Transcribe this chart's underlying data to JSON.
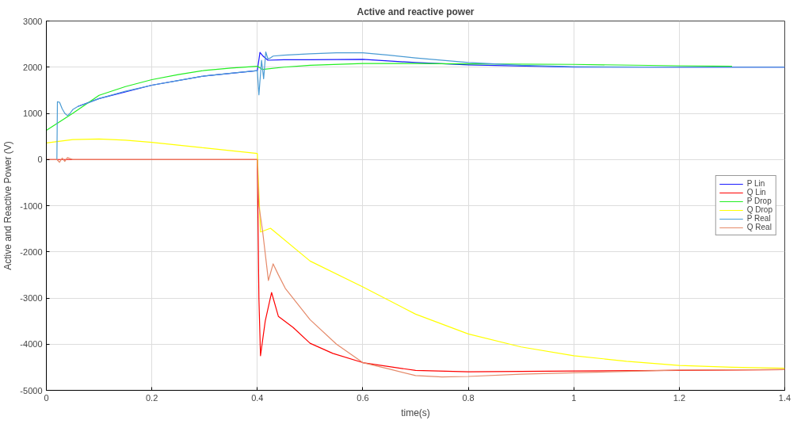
{
  "chart_data": {
    "type": "line",
    "title": "Active and reactive power",
    "xlabel": "time(s)",
    "ylabel": "Active and Reactive Power (V)",
    "xlim": [
      0,
      1.4
    ],
    "xticks": [
      0,
      0.2,
      0.4,
      0.6,
      0.8,
      1,
      1.2,
      1.4
    ],
    "ylim": [
      -5000,
      3000
    ],
    "yticks": [
      -5000,
      -4000,
      -3000,
      -2000,
      -1000,
      0,
      1000,
      2000,
      3000
    ],
    "grid": true,
    "legend": "right",
    "line_style": "solid",
    "marker": "none",
    "series": [
      {
        "name": "P Lin",
        "color": "#1a1aff",
        "x": [
          0.06,
          0.1,
          0.2,
          0.3,
          0.4,
          0.405,
          0.41,
          0.42,
          0.45,
          0.5,
          0.6,
          0.7,
          0.8,
          1.0,
          1.2,
          1.4
        ],
        "values": [
          1150,
          1320,
          1610,
          1810,
          1925,
          2320,
          2250,
          2150,
          2160,
          2160,
          2170,
          2100,
          2050,
          2000,
          2000,
          2000
        ]
      },
      {
        "name": "Q Lin",
        "color": "#ff0000",
        "x": [
          0,
          0.4,
          0.403,
          0.406,
          0.415,
          0.427,
          0.44,
          0.468,
          0.5,
          0.543,
          0.6,
          0.7,
          0.8,
          1.0,
          1.2,
          1.4
        ],
        "values": [
          0,
          0,
          -3000,
          -4250,
          -3500,
          -2880,
          -3400,
          -3640,
          -3980,
          -4200,
          -4400,
          -4570,
          -4600,
          -4580,
          -4570,
          -4550
        ]
      },
      {
        "name": "P Drop",
        "color": "#22ee22",
        "x": [
          0,
          0.05,
          0.1,
          0.15,
          0.2,
          0.25,
          0.3,
          0.35,
          0.4,
          0.41,
          0.45,
          0.5,
          0.6,
          0.7,
          0.8,
          1.0,
          1.2,
          1.3
        ],
        "values": [
          630,
          1000,
          1390,
          1580,
          1730,
          1840,
          1930,
          1980,
          2020,
          1950,
          2000,
          2040,
          2080,
          2080,
          2070,
          2060,
          2030,
          2020
        ]
      },
      {
        "name": "Q Drop",
        "color": "#ffff00",
        "x": [
          0,
          0.05,
          0.1,
          0.15,
          0.2,
          0.25,
          0.3,
          0.35,
          0.4,
          0.406,
          0.425,
          0.5,
          0.6,
          0.7,
          0.8,
          0.9,
          1.0,
          1.1,
          1.2,
          1.3,
          1.4
        ],
        "values": [
          360,
          430,
          445,
          420,
          370,
          310,
          250,
          190,
          130,
          -1570,
          -1490,
          -2200,
          -2760,
          -3350,
          -3780,
          -4060,
          -4250,
          -4370,
          -4460,
          -4500,
          -4520
        ]
      },
      {
        "name": "P Real",
        "color": "#4a9bd4",
        "x": [
          0.02,
          0.021,
          0.025,
          0.03,
          0.035,
          0.04,
          0.045,
          0.05,
          0.06,
          0.08,
          0.1,
          0.15,
          0.2,
          0.25,
          0.3,
          0.35,
          0.4,
          0.403,
          0.408,
          0.412,
          0.416,
          0.42,
          0.425,
          0.43,
          0.45,
          0.5,
          0.55,
          0.6,
          0.65,
          0.7,
          0.8,
          0.9,
          1.0,
          1.2,
          1.4
        ],
        "values": [
          0,
          1250,
          1240,
          1100,
          1000,
          950,
          1000,
          1080,
          1150,
          1230,
          1320,
          1480,
          1610,
          1710,
          1810,
          1870,
          1925,
          1400,
          2150,
          1750,
          2330,
          2180,
          2200,
          2240,
          2260,
          2290,
          2310,
          2310,
          2260,
          2200,
          2100,
          2040,
          2010,
          2000,
          2000
        ]
      },
      {
        "name": "Q Real",
        "color": "#e58a6a",
        "x": [
          0,
          0.02,
          0.025,
          0.03,
          0.035,
          0.04,
          0.05,
          0.4,
          0.403,
          0.41,
          0.421,
          0.43,
          0.44,
          0.453,
          0.5,
          0.55,
          0.6,
          0.65,
          0.7,
          0.75,
          0.8,
          0.9,
          1.0,
          1.2,
          1.4
        ],
        "values": [
          0,
          0,
          -60,
          30,
          -40,
          40,
          0,
          0,
          -1000,
          -1550,
          -2620,
          -2260,
          -2500,
          -2790,
          -3470,
          -4000,
          -4400,
          -4540,
          -4680,
          -4710,
          -4700,
          -4650,
          -4620,
          -4560,
          -4550
        ]
      }
    ]
  }
}
